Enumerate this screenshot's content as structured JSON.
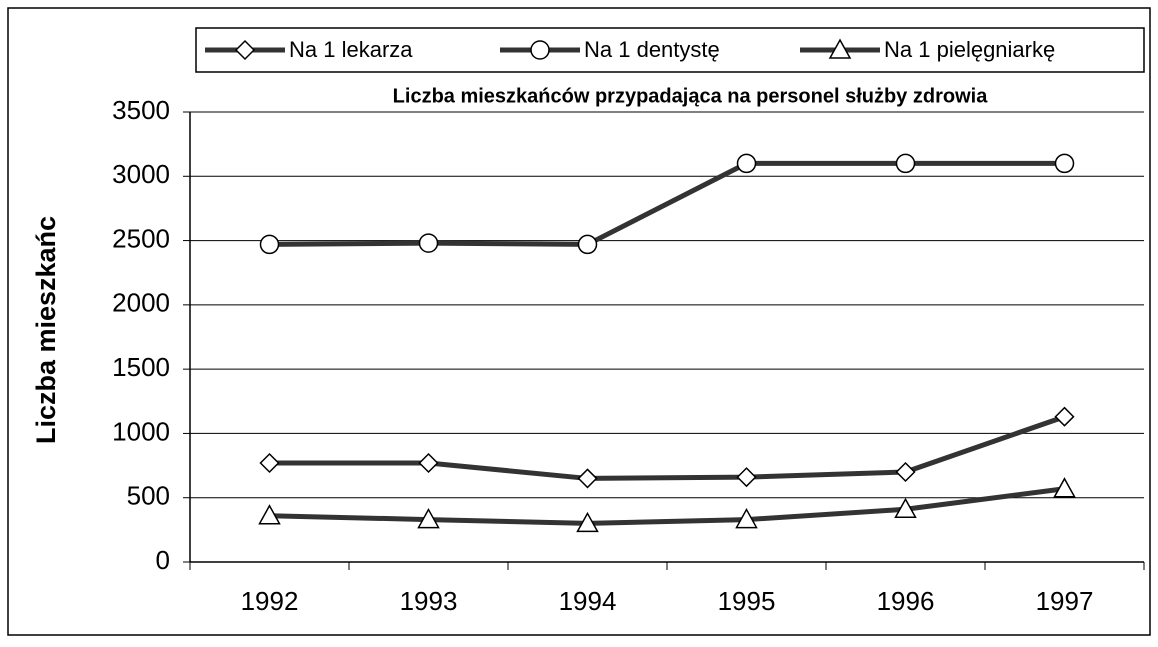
{
  "chart_data": {
    "type": "line",
    "title": "Liczba mieszkańców przypadająca na personel służby zdrowia",
    "y_label": "Liczba mieszkańc",
    "categories": [
      "1992",
      "1993",
      "1994",
      "1995",
      "1996",
      "1997"
    ],
    "series": [
      {
        "name": "Na 1 lekarza",
        "color": "#333333",
        "marker": "diamond",
        "values": [
          770,
          770,
          650,
          660,
          700,
          1130
        ]
      },
      {
        "name": "Na 1 dentystę",
        "color": "#333333",
        "marker": "circle",
        "values": [
          2470,
          2480,
          2470,
          3100,
          3100,
          3100
        ]
      },
      {
        "name": "Na 1 pielęgniarkę",
        "color": "#333333",
        "marker": "triangle",
        "values": [
          360,
          330,
          300,
          330,
          410,
          570
        ]
      }
    ],
    "ylim": [
      0,
      3500
    ],
    "yticks": [
      0,
      500,
      1000,
      1500,
      2000,
      2500,
      3000,
      3500
    ],
    "grid": true,
    "legend": "top"
  }
}
